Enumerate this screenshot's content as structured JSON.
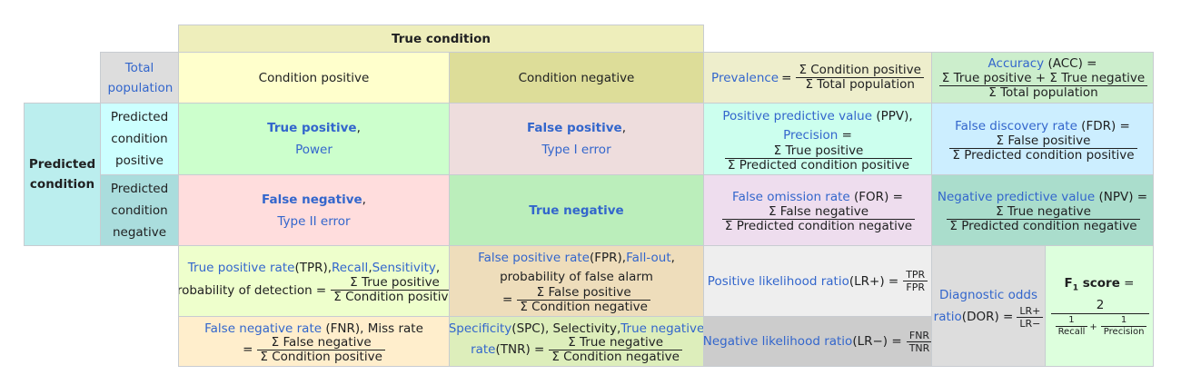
{
  "header": {
    "true_condition": "True condition"
  },
  "corner": {
    "total_population": "Total population"
  },
  "columns": {
    "condition_positive": "Condition positive",
    "condition_negative": "Condition negative"
  },
  "rows": {
    "predicted_condition": "Predicted condition",
    "predicted_positive": "Predicted condition positive",
    "predicted_negative": "Predicted condition negative"
  },
  "cells": {
    "tp": {
      "title": "True positive",
      "comma": ",",
      "sub": "Power"
    },
    "fp": {
      "title": "False positive",
      "comma": ",",
      "sub": "Type I error"
    },
    "fn": {
      "title": "False negative",
      "comma": ",",
      "sub": "Type II error"
    },
    "tn": {
      "title": "True negative"
    }
  },
  "prevalence": {
    "label": "Prevalence",
    "eq": "=",
    "num": "Σ Condition positive",
    "den": "Σ Total population"
  },
  "accuracy": {
    "label": "Accuracy",
    "abbr": " (ACC) =",
    "num": "Σ True positive + Σ True negative",
    "den": "Σ Total population"
  },
  "ppv": {
    "label": "Positive predictive value",
    "abbr": " (PPV),",
    "label2": "Precision",
    "eq": " =",
    "num": "Σ True positive",
    "den": "Σ Predicted condition positive"
  },
  "fdr": {
    "label": "False discovery rate",
    "abbr": " (FDR) =",
    "num": "Σ False positive",
    "den": "Σ Predicted condition positive"
  },
  "for": {
    "label": "False omission rate",
    "abbr": " (FOR) =",
    "num": "Σ False negative",
    "den": "Σ Predicted condition negative"
  },
  "npv": {
    "label": "Negative predictive value",
    "abbr": " (NPV) =",
    "num": "Σ True negative",
    "den": "Σ Predicted condition negative"
  },
  "tpr": {
    "label": "True positive rate",
    "abbr": " (TPR), ",
    "recall": "Recall",
    "sep": ", ",
    "sensitivity": "Sensitivity",
    "end": ",",
    "line2": "probability of detection =",
    "num": "Σ True positive",
    "den": "Σ Condition positive"
  },
  "fpr": {
    "label": "False positive rate",
    "abbr": " (FPR), ",
    "fallout": "Fall-out",
    "end": ",",
    "line2": "probability of false alarm",
    "eq": "=",
    "num": "Σ False positive",
    "den": "Σ Condition negative"
  },
  "fnr": {
    "label": "False negative rate",
    "abbr": " (FNR), Miss rate",
    "eq": "=",
    "num": "Σ False negative",
    "den": "Σ Condition positive"
  },
  "spc": {
    "label": "Specificity",
    "abbr": " (SPC), Selectivity, ",
    "tnr": "True negative",
    "line2a": "rate",
    "line2b": " (TNR) =",
    "num": "Σ True negative",
    "den": "Σ Condition negative"
  },
  "lrp": {
    "label": "Positive likelihood ratio",
    "abbr": " (LR+) =",
    "num": "TPR",
    "den": "FPR"
  },
  "lrn": {
    "label": "Negative likelihood ratio",
    "abbr": " (LR−) =",
    "num": "FNR",
    "den": "TNR"
  },
  "dor": {
    "label": "Diagnostic odds",
    "label2": "ratio",
    "abbr": " (DOR) =",
    "num": "LR+",
    "den": "LR−"
  },
  "f1": {
    "label": "F",
    "sub": "1",
    "label_end": " score",
    "eq": " =",
    "num": "2",
    "one": "1",
    "recall": "Recall",
    "plus": "+",
    "precision": "Precision"
  },
  "colors": {
    "true_condition": "#eeeebb",
    "total_population": "#dddddd",
    "cond_pos": "#ffffcc",
    "cond_neg": "#dddd99",
    "pred_cond": "#bbeeee",
    "pred_pos": "#ccffff",
    "pred_neg": "#aadddd",
    "tp": "#ccffcc",
    "fp": "#eedddd",
    "fn": "#ffdddd",
    "tn": "#bbeebb",
    "prevalence": "#eeeecc",
    "accuracy": "#cceecc",
    "ppv": "#ccffee",
    "fdr": "#cceeff",
    "for": "#eeddee",
    "npv": "#aaddcc",
    "tpr": "#eeffcc",
    "fpr": "#eeddbb",
    "fnr": "#ffeecc",
    "spc": "#ddeebb",
    "lrp": "#eeeeee",
    "lrn": "#cccccc",
    "dor": "#dddddd",
    "f1": "#ddffdd"
  }
}
